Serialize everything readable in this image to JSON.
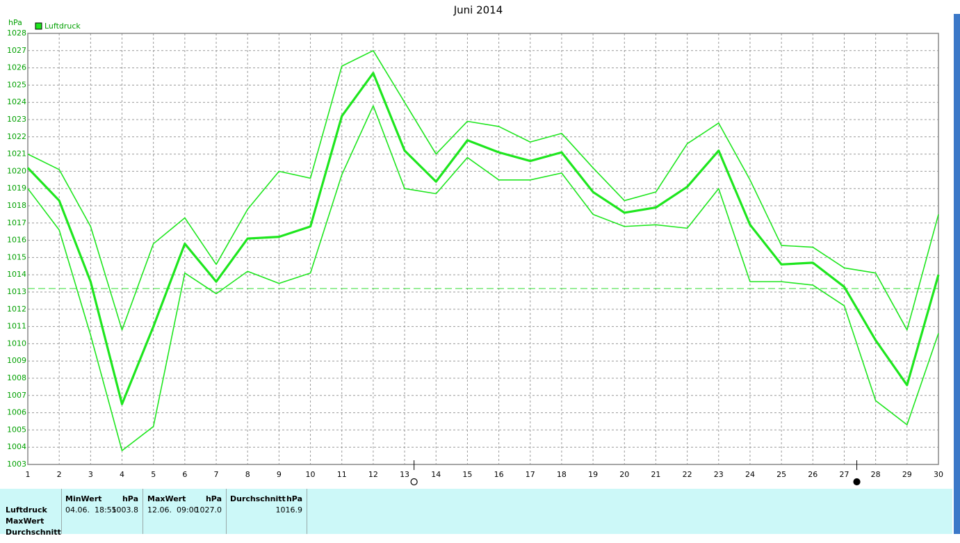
{
  "chart_data": {
    "type": "line",
    "title": "Juni 2014",
    "ylabel": "hPa",
    "x": [
      1,
      2,
      3,
      4,
      5,
      6,
      7,
      8,
      9,
      10,
      11,
      12,
      13,
      14,
      15,
      16,
      17,
      18,
      19,
      20,
      21,
      22,
      23,
      24,
      25,
      26,
      27,
      28,
      29,
      30
    ],
    "xlim": [
      1,
      30
    ],
    "xticks": [
      1,
      2,
      3,
      4,
      5,
      6,
      7,
      8,
      9,
      10,
      11,
      12,
      13,
      14,
      15,
      16,
      17,
      18,
      19,
      20,
      21,
      22,
      23,
      24,
      25,
      26,
      27,
      28,
      29,
      30
    ],
    "ylim": [
      1003,
      1028
    ],
    "yticks": [
      1003,
      1004,
      1005,
      1006,
      1007,
      1008,
      1009,
      1010,
      1011,
      1012,
      1013,
      1014,
      1015,
      1016,
      1017,
      1018,
      1019,
      1020,
      1021,
      1022,
      1023,
      1024,
      1025,
      1026,
      1027,
      1028
    ],
    "grid": true,
    "legend": "top-left",
    "series": [
      {
        "name": "Luftdruck",
        "color": "#1ee61e",
        "line_width": 3.2,
        "values": [
          1020.2,
          1018.3,
          1013.6,
          1006.5,
          1011.0,
          1015.8,
          1013.6,
          1016.1,
          1016.2,
          1016.8,
          1023.2,
          1025.7,
          1021.2,
          1019.4,
          1021.8,
          1021.1,
          1020.6,
          1021.1,
          1018.8,
          1017.6,
          1017.9,
          1019.1,
          1021.2,
          1016.9,
          1014.6,
          1014.7,
          1013.3,
          1010.2,
          1007.6,
          1014.0
        ]
      },
      {
        "color": "#1ee61e",
        "line_width": 1.6,
        "values": [
          1021.0,
          1020.1,
          1016.8,
          1010.8,
          1015.8,
          1017.3,
          1014.6,
          1017.8,
          1020.0,
          1019.6,
          1026.1,
          1027.0,
          1024.0,
          1021.0,
          1022.9,
          1022.6,
          1021.7,
          1022.2,
          1020.2,
          1018.3,
          1018.8,
          1021.6,
          1022.8,
          1019.5,
          1015.7,
          1015.6,
          1014.4,
          1014.1,
          1010.8,
          1017.5
        ]
      },
      {
        "color": "#1ee61e",
        "line_width": 1.6,
        "values": [
          1019.0,
          1016.6,
          1010.5,
          1003.8,
          1005.2,
          1014.1,
          1012.9,
          1014.2,
          1013.5,
          1014.1,
          1019.8,
          1023.8,
          1019.0,
          1018.7,
          1020.8,
          1019.5,
          1019.5,
          1019.9,
          1017.5,
          1016.8,
          1016.9,
          1016.7,
          1019.0,
          1013.6,
          1013.6,
          1013.4,
          1012.2,
          1006.7,
          1005.3,
          1010.6
        ]
      }
    ],
    "hline": {
      "value": 1013.2,
      "color": "#33dd33"
    },
    "markers": [
      {
        "x": 13.3,
        "filled": false
      },
      {
        "x": 27.4,
        "filled": true
      }
    ]
  },
  "table": {
    "headers": [
      [
        "MinWert",
        "hPa"
      ],
      [
        "MaxWert",
        "hPa"
      ],
      [
        "Durchschnitt",
        "hPa"
      ]
    ],
    "row_labels": [
      "Luftdruck",
      "MaxWert",
      "Durchschnitt"
    ],
    "cells": [
      [
        "04.06.  18:55",
        "1003.8"
      ],
      [
        "12.06.  09:00",
        "1027.0"
      ],
      [
        "1016.9"
      ]
    ]
  }
}
